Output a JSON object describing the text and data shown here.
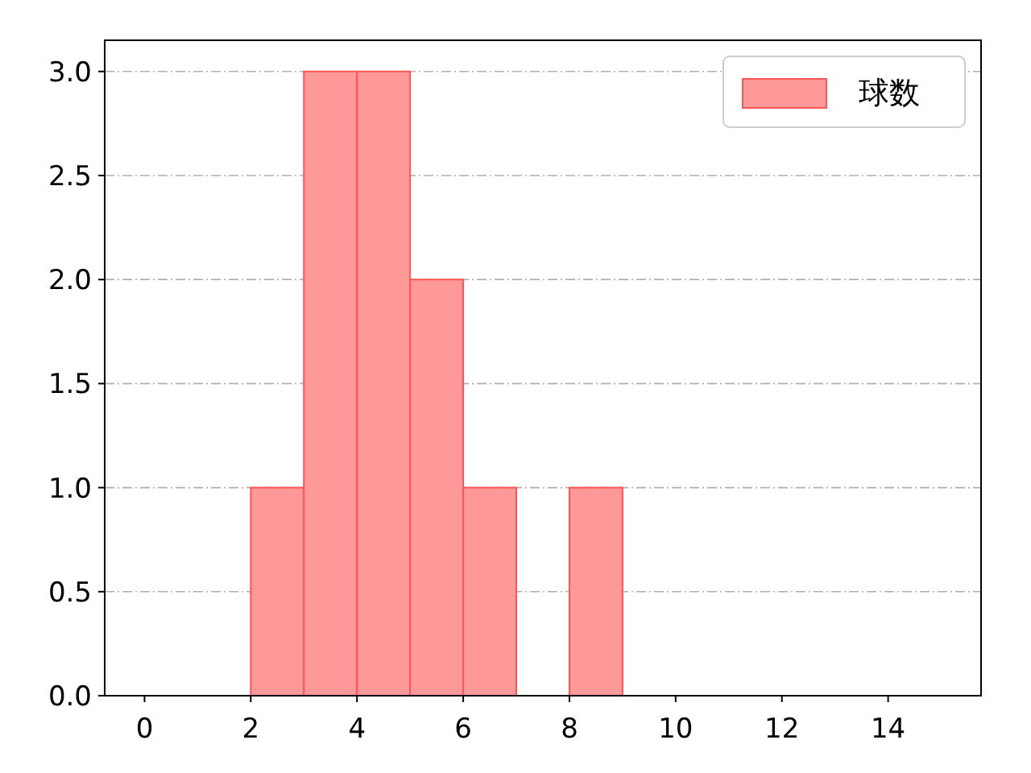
{
  "chart_data": {
    "type": "histogram",
    "bins": [
      2,
      3,
      4,
      5,
      6,
      7,
      8,
      9
    ],
    "series": [
      {
        "name": "球数",
        "color": "#ff9999",
        "values": [
          1,
          3,
          3,
          2,
          1,
          0,
          1
        ]
      }
    ],
    "xlim": [
      -0.75,
      15.75
    ],
    "xticks": [
      0,
      2,
      4,
      6,
      8,
      10,
      12,
      14
    ],
    "ylim": [
      0,
      3.15
    ],
    "yticks": [
      {
        "value": 0,
        "label": "0.0"
      },
      {
        "value": 0.5,
        "label": "0.5"
      },
      {
        "value": 1,
        "label": "1.0"
      },
      {
        "value": 1.5,
        "label": "1.5"
      },
      {
        "value": 2,
        "label": "2.0"
      },
      {
        "value": 2.5,
        "label": "2.5"
      },
      {
        "value": 3,
        "label": "3.0"
      }
    ],
    "grid": "y",
    "legend": "top right"
  }
}
